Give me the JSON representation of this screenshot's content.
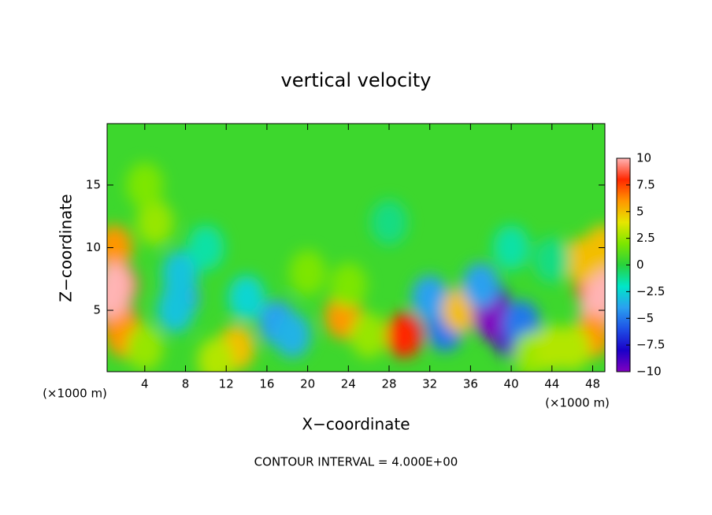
{
  "chart_data": {
    "type": "contour",
    "title": "vertical velocity",
    "x_label": "X−coordinate",
    "y_label": "Z−coordinate",
    "x_unit_left": "(×1000 m)",
    "x_unit_right": "(×1000 m)",
    "note": "CONTOUR INTERVAL = 4.000E+00",
    "xlim": [
      0.3,
      49.2
    ],
    "ylim": [
      0.1,
      19.9
    ],
    "xticks": [
      4,
      8,
      12,
      16,
      20,
      24,
      28,
      32,
      36,
      40,
      44,
      48
    ],
    "yticks": [
      5,
      10,
      15
    ],
    "zlim": [
      -10,
      10
    ],
    "zticks": [
      10,
      7.5,
      5,
      2.5,
      0,
      {
        "value": -2.5,
        "label": "−2.5"
      },
      {
        "value": -5,
        "label": "−5"
      },
      {
        "value": -7.5,
        "label": "−7.5"
      },
      {
        "value": -10,
        "label": "−10"
      }
    ],
    "colormap": [
      "#8000c0",
      "#1a00c8",
      "#1e50e6",
      "#2aa0f0",
      "#00e6c8",
      "#28d23c",
      "#7de600",
      "#e6e600",
      "#ff9600",
      "#ff2800",
      "#ffb4b4"
    ],
    "x": [
      1.5,
      1.5,
      1,
      1,
      0.7,
      2,
      48,
      48.5,
      49,
      47,
      48,
      46,
      49,
      7.5,
      7.5,
      7,
      17,
      18.5,
      14,
      23.5,
      29.5,
      33,
      33.5,
      32,
      35,
      38,
      39,
      40,
      38,
      41,
      37,
      13,
      11,
      4,
      24,
      26,
      20,
      42,
      5,
      4,
      44,
      28,
      40,
      44,
      10
    ],
    "z": [
      7,
      4,
      10,
      7,
      6,
      3,
      7,
      5,
      7,
      9,
      3,
      2,
      10,
      6,
      8,
      5,
      4,
      3,
      6,
      4.5,
      3,
      5,
      3.5,
      6,
      5,
      5.5,
      4,
      3,
      4.5,
      4,
      7,
      2,
      1,
      2,
      7,
      3,
      8,
      1.5,
      12,
      15,
      2,
      12,
      10,
      9,
      10
    ],
    "values": [
      7.5,
      7,
      6,
      10,
      10,
      6,
      7,
      10,
      10,
      5,
      6,
      3,
      5,
      -4,
      -3,
      -3,
      -4,
      -3.5,
      -2.5,
      6,
      8,
      -7,
      -5,
      -4,
      5,
      -8,
      -8,
      -9,
      -10,
      -5,
      -4,
      5,
      3,
      2.5,
      2,
      2.5,
      2,
      2.5,
      2.5,
      2,
      3,
      -1,
      -1.5,
      -1,
      -1.5
    ]
  }
}
